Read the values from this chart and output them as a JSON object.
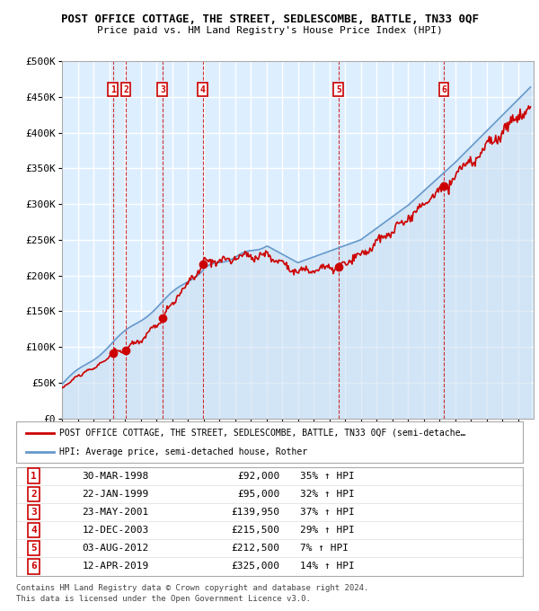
{
  "title": "POST OFFICE COTTAGE, THE STREET, SEDLESCOMBE, BATTLE, TN33 0QF",
  "subtitle": "Price paid vs. HM Land Registry's House Price Index (HPI)",
  "legend_line1": "POST OFFICE COTTAGE, THE STREET, SEDLESCOMBE, BATTLE, TN33 0QF (semi-detache…",
  "legend_line2": "HPI: Average price, semi-detached house, Rother",
  "footer1": "Contains HM Land Registry data © Crown copyright and database right 2024.",
  "footer2": "This data is licensed under the Open Government Licence v3.0.",
  "sale_transactions": [
    {
      "num": 1,
      "date": "30-MAR-1998",
      "price": 92000,
      "pct": "35% ↑ HPI",
      "date_dec": 1998.24
    },
    {
      "num": 2,
      "date": "22-JAN-1999",
      "price": 95000,
      "pct": "32% ↑ HPI",
      "date_dec": 1999.06
    },
    {
      "num": 3,
      "date": "23-MAY-2001",
      "price": 139950,
      "pct": "37% ↑ HPI",
      "date_dec": 2001.39
    },
    {
      "num": 4,
      "date": "12-DEC-2003",
      "price": 215500,
      "pct": "29% ↑ HPI",
      "date_dec": 2003.95
    },
    {
      "num": 5,
      "date": "03-AUG-2012",
      "price": 212500,
      "pct": "7% ↑ HPI",
      "date_dec": 2012.59
    },
    {
      "num": 6,
      "date": "12-APR-2019",
      "price": 325000,
      "pct": "14% ↑ HPI",
      "date_dec": 2019.28
    }
  ],
  "ylim": [
    0,
    500000
  ],
  "yticks": [
    0,
    50000,
    100000,
    150000,
    200000,
    250000,
    300000,
    350000,
    400000,
    450000,
    500000
  ],
  "ytick_labels": [
    "£0",
    "£50K",
    "£100K",
    "£150K",
    "£200K",
    "£250K",
    "£300K",
    "£350K",
    "£400K",
    "£450K",
    "£500K"
  ],
  "xlim_start": 1995.0,
  "xlim_end": 2025.0,
  "price_line_color": "#cc0000",
  "hpi_line_color": "#6699cc",
  "hpi_fill_color": "#cce0f0",
  "dashed_line_color": "#cc0000",
  "plot_bg_color": "#ddeeff",
  "grid_color": "#ffffff",
  "marker_color": "#cc0000",
  "box_color": "#cc0000"
}
